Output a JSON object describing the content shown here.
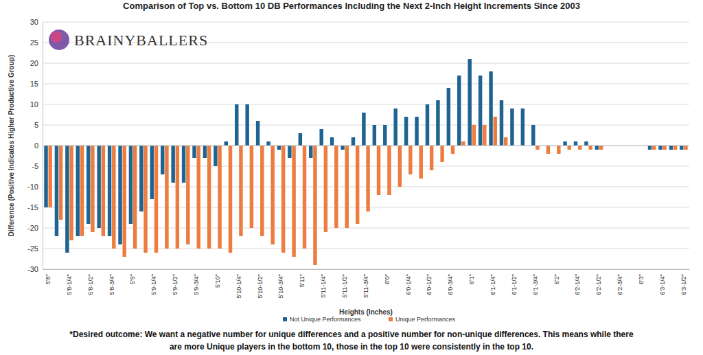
{
  "chart_data": {
    "type": "bar",
    "title": "Comparison of Top vs. Bottom 10 DB Performances Including the Next 2-Inch Height Increments Since 2003",
    "x_label": "Heights (Inches)",
    "y_label": "Difference (Positive Indicates Higher Productive Group)",
    "annotations": [
      "BRAINYBALLERS",
      "*Desired outcome: We want a negative number for unique differences and a positive number for non-unique differences. This means while there",
      "are more Unique players in the bottom 10, those in the top 10 were consistently in the top 10."
    ],
    "categories": [
      "5'8\"",
      null,
      "5'8-1/4\"",
      null,
      "5'8-1/2\"",
      null,
      "5'8-3/4\"",
      null,
      "5'9\"",
      null,
      "5'9-1/4\"",
      null,
      "5'9-1/2\"",
      null,
      "5'9-3/4\"",
      null,
      "5'10\"",
      null,
      "5'10-1/4\"",
      null,
      "5'10-1/2\"",
      null,
      "5'10-3/4\"",
      null,
      "5'11\"",
      null,
      "5'11-1/4\"",
      null,
      "5'11-1/2\"",
      null,
      "5'11-3/4\"",
      null,
      "6'0\"",
      null,
      "6'0-1/4\"",
      null,
      "6'0-1/2\"",
      null,
      "6'0-3/4\"",
      null,
      "6'1\"",
      null,
      "6'1-1/4\"",
      null,
      "6'1-1/2\"",
      null,
      "6'1-3/4\"",
      null,
      "6'2\"",
      null,
      "6'2-1/4\"",
      null,
      "6'2-1/2\"",
      null,
      "6'2-3/4\"",
      null,
      "6'3\"",
      null,
      "6'3-1/4\"",
      null,
      "6'3-1/2\""
    ],
    "series": [
      {
        "name": "Not Unique Performances",
        "color": "#1f6391",
        "values": [
          -15,
          -22,
          -26,
          -22,
          -19,
          -20,
          -22,
          -24,
          -19,
          -16,
          -13,
          -7,
          -9,
          -9,
          -3,
          -3,
          -5,
          1,
          10,
          10,
          6,
          1,
          -1,
          -3,
          3,
          -3,
          4,
          2,
          -1,
          2,
          8,
          5,
          5,
          9,
          7,
          7,
          10,
          11,
          14,
          17,
          21,
          17,
          18,
          11,
          9,
          9,
          5,
          0,
          0,
          1,
          1,
          1,
          -1,
          0,
          0,
          0,
          0,
          -1,
          -1,
          -1,
          -1
        ]
      },
      {
        "name": "Unique Performances",
        "color": "#ec7c3f",
        "values": [
          -15,
          -18,
          -23,
          -22,
          -21,
          -22,
          -25,
          -27,
          -25,
          -26,
          -26,
          -25,
          -25,
          -24,
          -25,
          -25,
          -25,
          -26,
          -22,
          -20,
          -22,
          -24,
          -26,
          -27,
          -25,
          -29,
          -21,
          -20,
          -20,
          -19,
          -16,
          -12,
          -12,
          -10,
          -7,
          -8,
          -6,
          -4,
          -2,
          1,
          5,
          5,
          7,
          2,
          0,
          0,
          -1,
          -2,
          -2,
          -1,
          -1,
          -1,
          -1,
          0,
          0,
          0,
          0,
          -1,
          -1,
          -1,
          -1
        ]
      }
    ],
    "ylim": [
      -30,
      30
    ],
    "yticks": [
      -30,
      -25,
      -20,
      -15,
      -10,
      -5,
      0,
      5,
      10,
      15,
      20,
      25,
      30
    ],
    "grid": true,
    "legend": "bottom"
  }
}
